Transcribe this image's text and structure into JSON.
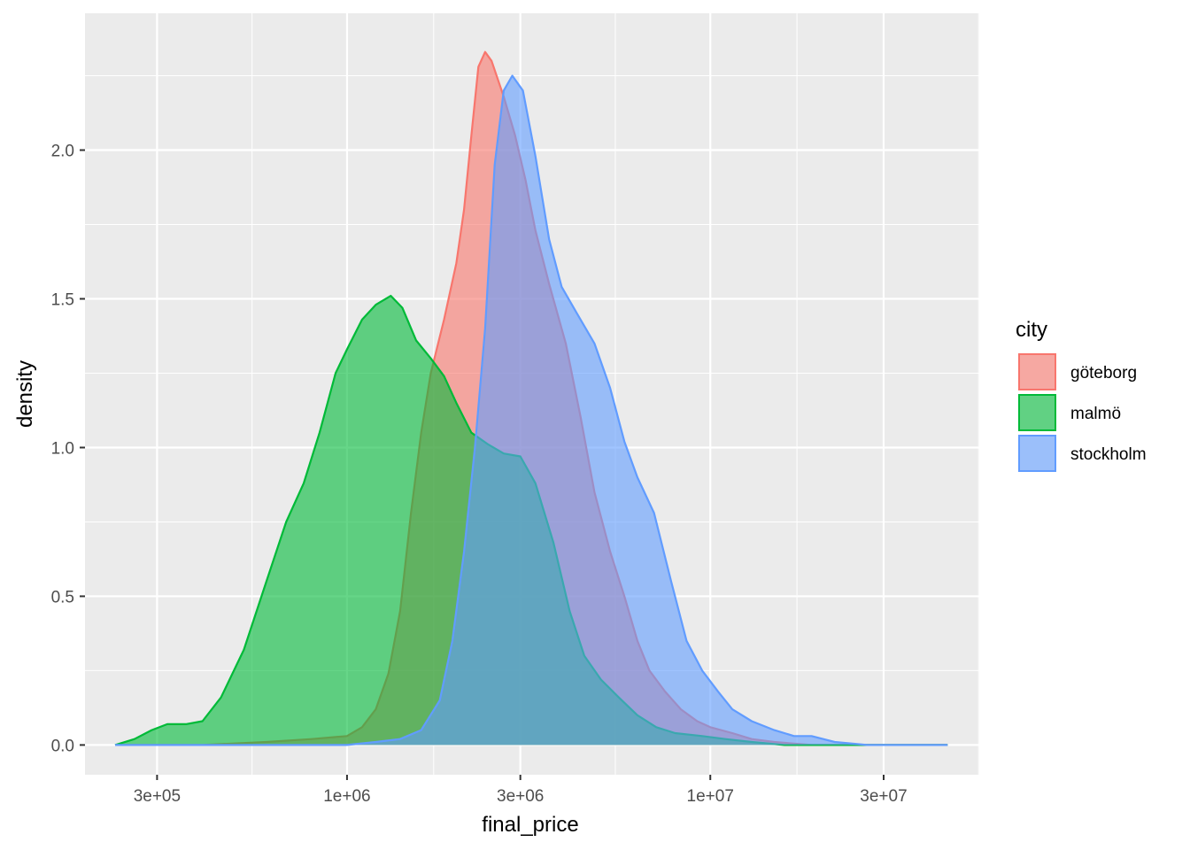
{
  "chart_data": {
    "type": "area",
    "title": "",
    "xlabel": "final_price",
    "ylabel": "density",
    "x_scale": "log10",
    "xlim": [
      190000,
      55000000
    ],
    "ylim": [
      -0.1,
      2.46
    ],
    "x_ticks": [
      {
        "value": 300000,
        "label": "3e+05"
      },
      {
        "value": 1000000,
        "label": "1e+06"
      },
      {
        "value": 3000000,
        "label": "3e+06"
      },
      {
        "value": 10000000,
        "label": "1e+07"
      },
      {
        "value": 30000000,
        "label": "3e+07"
      }
    ],
    "x_minor_ticks": [
      547723,
      1732051,
      5477226,
      17320508,
      54772256
    ],
    "y_ticks": [
      {
        "value": 0.0,
        "label": "0.0"
      },
      {
        "value": 0.5,
        "label": "0.5"
      },
      {
        "value": 1.0,
        "label": "1.0"
      },
      {
        "value": 1.5,
        "label": "1.5"
      },
      {
        "value": 2.0,
        "label": "2.0"
      }
    ],
    "y_minor_ticks": [
      0.25,
      0.75,
      1.25,
      1.75,
      2.25
    ],
    "grid": true,
    "legend": {
      "title": "city",
      "position": "right"
    },
    "series": [
      {
        "name": "göteborg",
        "color": "#F8766D",
        "points": [
          [
            230000,
            0.0
          ],
          [
            400000,
            0.0
          ],
          [
            600000,
            0.01
          ],
          [
            800000,
            0.02
          ],
          [
            1000000,
            0.03
          ],
          [
            1100000,
            0.06
          ],
          [
            1200000,
            0.12
          ],
          [
            1300000,
            0.24
          ],
          [
            1400000,
            0.45
          ],
          [
            1500000,
            0.78
          ],
          [
            1600000,
            1.05
          ],
          [
            1700000,
            1.25
          ],
          [
            1850000,
            1.43
          ],
          [
            2000000,
            1.62
          ],
          [
            2100000,
            1.8
          ],
          [
            2200000,
            2.05
          ],
          [
            2300000,
            2.28
          ],
          [
            2400000,
            2.33
          ],
          [
            2500000,
            2.3
          ],
          [
            2700000,
            2.18
          ],
          [
            2900000,
            2.05
          ],
          [
            3100000,
            1.9
          ],
          [
            3300000,
            1.73
          ],
          [
            3600000,
            1.55
          ],
          [
            4000000,
            1.35
          ],
          [
            4400000,
            1.1
          ],
          [
            4800000,
            0.85
          ],
          [
            5300000,
            0.65
          ],
          [
            5800000,
            0.5
          ],
          [
            6300000,
            0.35
          ],
          [
            6800000,
            0.25
          ],
          [
            7500000,
            0.18
          ],
          [
            8300000,
            0.12
          ],
          [
            9200000,
            0.08
          ],
          [
            10000000,
            0.06
          ],
          [
            11500000,
            0.04
          ],
          [
            13000000,
            0.02
          ],
          [
            15000000,
            0.01
          ],
          [
            19000000,
            0.0
          ],
          [
            45000000,
            0.0
          ]
        ]
      },
      {
        "name": "malmö",
        "color": "#00BA38",
        "points": [
          [
            230000,
            0.0
          ],
          [
            260000,
            0.02
          ],
          [
            290000,
            0.05
          ],
          [
            320000,
            0.07
          ],
          [
            360000,
            0.07
          ],
          [
            400000,
            0.08
          ],
          [
            450000,
            0.16
          ],
          [
            520000,
            0.32
          ],
          [
            600000,
            0.55
          ],
          [
            680000,
            0.75
          ],
          [
            760000,
            0.88
          ],
          [
            840000,
            1.05
          ],
          [
            930000,
            1.25
          ],
          [
            1000000,
            1.33
          ],
          [
            1100000,
            1.43
          ],
          [
            1200000,
            1.48
          ],
          [
            1320000,
            1.51
          ],
          [
            1420000,
            1.47
          ],
          [
            1550000,
            1.36
          ],
          [
            1700000,
            1.3
          ],
          [
            1850000,
            1.24
          ],
          [
            2000000,
            1.15
          ],
          [
            2200000,
            1.05
          ],
          [
            2450000,
            1.01
          ],
          [
            2700000,
            0.98
          ],
          [
            3000000,
            0.97
          ],
          [
            3300000,
            0.88
          ],
          [
            3700000,
            0.68
          ],
          [
            4100000,
            0.45
          ],
          [
            4500000,
            0.3
          ],
          [
            5000000,
            0.22
          ],
          [
            5600000,
            0.16
          ],
          [
            6300000,
            0.1
          ],
          [
            7100000,
            0.06
          ],
          [
            8000000,
            0.04
          ],
          [
            9500000,
            0.03
          ],
          [
            11000000,
            0.02
          ],
          [
            13000000,
            0.01
          ],
          [
            16000000,
            0.0
          ],
          [
            45000000,
            0.0
          ]
        ]
      },
      {
        "name": "stockholm",
        "color": "#619CFF",
        "points": [
          [
            230000,
            0.0
          ],
          [
            1000000,
            0.0
          ],
          [
            1200000,
            0.01
          ],
          [
            1400000,
            0.02
          ],
          [
            1600000,
            0.05
          ],
          [
            1800000,
            0.15
          ],
          [
            1950000,
            0.35
          ],
          [
            2100000,
            0.65
          ],
          [
            2250000,
            1.0
          ],
          [
            2400000,
            1.4
          ],
          [
            2550000,
            1.95
          ],
          [
            2700000,
            2.2
          ],
          [
            2850000,
            2.25
          ],
          [
            3050000,
            2.2
          ],
          [
            3300000,
            1.98
          ],
          [
            3600000,
            1.7
          ],
          [
            3900000,
            1.54
          ],
          [
            4300000,
            1.45
          ],
          [
            4800000,
            1.35
          ],
          [
            5300000,
            1.2
          ],
          [
            5800000,
            1.02
          ],
          [
            6300000,
            0.9
          ],
          [
            7000000,
            0.78
          ],
          [
            7800000,
            0.55
          ],
          [
            8600000,
            0.35
          ],
          [
            9500000,
            0.25
          ],
          [
            10500000,
            0.18
          ],
          [
            11500000,
            0.12
          ],
          [
            13000000,
            0.08
          ],
          [
            15000000,
            0.05
          ],
          [
            17000000,
            0.03
          ],
          [
            19000000,
            0.03
          ],
          [
            22000000,
            0.01
          ],
          [
            27000000,
            0.0
          ],
          [
            45000000,
            0.0
          ]
        ]
      }
    ]
  }
}
